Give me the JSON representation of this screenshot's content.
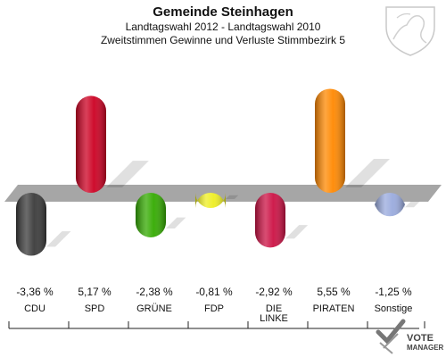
{
  "chart_data": {
    "type": "bar",
    "title": "Gemeinde Steinhagen",
    "subtitle_1": "Landtagswahl 2012 - Landtagswahl 2010",
    "subtitle_2": "Zweitstimmen Gewinne und Verluste Stimmbezirk 5",
    "categories": [
      "CDU",
      "SPD",
      "GRÜNE",
      "FDP",
      "DIE LINKE",
      "PIRATEN",
      "Sonstige"
    ],
    "category_lines": [
      [
        "CDU"
      ],
      [
        "SPD"
      ],
      [
        "GRÜNE"
      ],
      [
        "FDP"
      ],
      [
        "DIE",
        "LINKE"
      ],
      [
        "PIRATEN"
      ],
      [
        "Sonstige"
      ]
    ],
    "values": [
      -3.36,
      5.17,
      -2.38,
      -0.81,
      -2.92,
      5.55,
      -1.25
    ],
    "value_labels": [
      "-3,36 %",
      "5,17 %",
      "-2,38 %",
      "-0,81 %",
      "-2,92 %",
      "5,55 %",
      "-1,25 %"
    ],
    "colors": [
      "#3a3a3a",
      "#cc0022",
      "#33aa00",
      "#eeee22",
      "#cc1144",
      "#ff8800",
      "#99aadd"
    ],
    "ylim": [
      -3.6,
      5.8
    ]
  },
  "logo": {
    "line1": "VOTE",
    "line2": "MANAGER"
  }
}
